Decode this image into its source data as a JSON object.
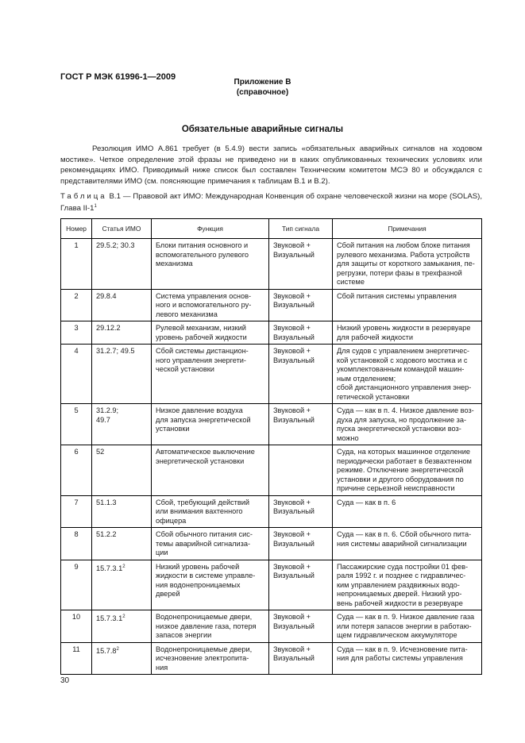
{
  "header": "ГОСТ Р МЭК 61996-1—2009",
  "annex": {
    "title": "Приложение В",
    "subtitle": "(справочное)"
  },
  "title": "Обязательные аварийные сигналы",
  "paragraph": "Резолюция ИМО А.861 требует (в 5.4.9) вести запись «обязательных аварийных сигналов на ходовом мостике». Четкое определение этой фразы не приведено ни в каких опубликованных технических условиях или рекомендациях ИМО. Приводимый ниже список был составлен Техническим комитетом МСЭ 80 и обсуждался с представителями ИМО (см. поясняющие примечания к таблицам В.1 и В.2).",
  "caption": {
    "label": "Таблица",
    "text": " В.1 — Правовой акт ИМО: Международная Конвенция об охране человеческой жизни на море (SOLAS), Глава II-1",
    "sup": "1"
  },
  "table": {
    "columns": [
      "Номер",
      "Статья ИМО",
      "Функция",
      "Тип сигнала",
      "Примечания"
    ],
    "rows": [
      {
        "n": "1",
        "art": "29.5.2; 30.3",
        "sup": "",
        "func": "Блоки питания основного и\nвспомогательного рулевого\nмеханизма",
        "type": "Звуковой +\nВизуальный",
        "note": "Сбой питания на любом блоке питания\nрулевого механизма. Работа устройств\nдля защиты от короткого замыкания, пе-\nрегрузки, потери фазы в трехфазной\nсистеме",
        "h": 62
      },
      {
        "n": "2",
        "art": "29.8.4",
        "sup": "",
        "func": "Система управления основ-\nного и вспомогательного ру-\nлевого механизма",
        "type": "Звуковой +\nВизуальный",
        "note": "Сбой питания системы управления",
        "h": 38
      },
      {
        "n": "3",
        "art": "29.12.2",
        "sup": "",
        "func": "Рулевой механизм, низкий\nуровень рабочей жидкости",
        "type": "Звуковой +\nВизуальный",
        "note": "Низкий уровень жидкости в резервуаре\nдля рабочей жидкости",
        "h": 28
      },
      {
        "n": "4",
        "art": "31.2.7; 49.5",
        "sup": "",
        "func": "Сбой системы дистанцион-\nного управления энергети-\nческой установки",
        "type": "Звуковой +\nВизуальный",
        "note": "Для судов с управлением энергетичес-\nкой установкой с ходового мостика и с\nукомплектованным командой машин-\nным отделением;\nсбой дистанционного управления энер-\nгетической установки",
        "h": 72
      },
      {
        "n": "5",
        "art": "31.2.9;\n49.7",
        "sup": "",
        "func": "Низкое давление воздуха\nдля запуска энергетической\nустановки",
        "type": "Звуковой +\nВизуальный",
        "note": "Суда — как в п. 4. Низкое давление воз-\nдуха для запуска, но продолжение за-\nпуска энергетической установки воз-\nможно",
        "h": 52
      },
      {
        "n": "6",
        "art": "52",
        "sup": "",
        "func": "Автоматическое выключение\nэнергетической установки",
        "type": "",
        "note": "Суда, на которых машинное отделение\nпериодически работает в безвахтенном\nрежиме. Отключение энергетической\nустановки и другого оборудования по\nпричине серьезной неисправности",
        "h": 60
      },
      {
        "n": "7",
        "art": "51.1.3",
        "sup": "",
        "func": "Сбой, требующий действий\nили внимания вахтенного\nофицера",
        "type": "Звуковой +\nВизуальный",
        "note": "Суда — как в п. 6",
        "h": 40
      },
      {
        "n": "8",
        "art": "51.2.2",
        "sup": "",
        "func": "Сбой обычного питания сис-\nтемы аварийной сигнализа-\nции",
        "type": "Звуковой +\nВизуальный",
        "note": "Суда — как в п. 6. Сбой обычного пита-\nния системы аварийной сигнализации",
        "h": 40
      },
      {
        "n": "9",
        "art": "15.7.3.1",
        "sup": "2",
        "func": "Низкий уровень рабочей\nжидкости в системе управле-\nния водонепроницаемых\nдверей",
        "type": "Звуковой +\nВизуальный",
        "note": "Пассажирские суда постройки 01 фев-\nраля 1992 г. и позднее с гидравличес-\nким управлением раздвижных водо-\nнепроницаемых дверей. Низкий уро-\nвень рабочей жидкости в резервуаре",
        "h": 62
      },
      {
        "n": "10",
        "art": "15.7.3.1",
        "sup": "2",
        "func": "Водонепроницаемые двери,\nнизкое давление газа, потеря\nзапасов энергии",
        "type": "Звуковой +\nВизуальный",
        "note": "Суда — как в п. 9. Низкое давление газа\nили потеря запасов энергии в работаю-\nщем гидравлическом аккумуляторе",
        "h": 40
      },
      {
        "n": "11",
        "art": "15.7.8",
        "sup": "2",
        "func": "Водонепроницаемые двери,\nисчезновение электропита-\nния",
        "type": "Звуковой +\nВизуальный",
        "note": "Суда — как в п. 9. Исчезновение пита-\nния для работы системы управления",
        "h": 40
      }
    ]
  },
  "page_number": "30"
}
